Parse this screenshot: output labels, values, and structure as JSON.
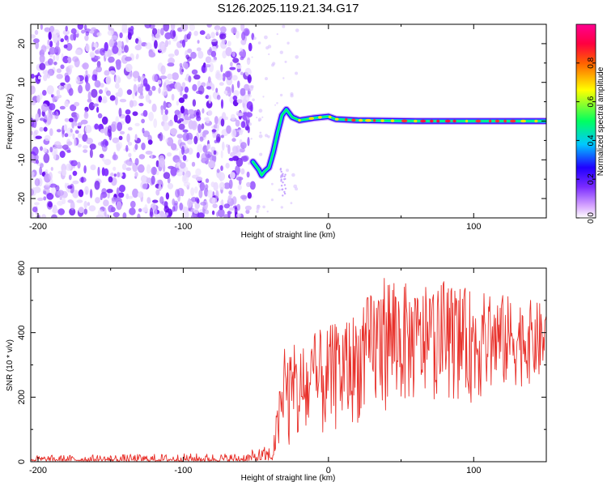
{
  "chart_data": [
    {
      "type": "heatmap",
      "title": "S126.2025.119.21.34.G17",
      "xlabel": "Height of straight line (km)",
      "ylabel": "Frequency (Hz)",
      "xlim": [
        -205,
        150
      ],
      "ylim": [
        -25,
        25
      ],
      "x_ticks": [
        -200,
        -100,
        0,
        100
      ],
      "y_ticks": [
        -20,
        -10,
        0,
        10,
        20
      ],
      "colorbar": {
        "label": "Normalized spectral amplitude",
        "range": [
          0,
          1
        ],
        "ticks": [
          0.0,
          0.2,
          0.4,
          0.6,
          0.8
        ],
        "colors": [
          "#ffffff",
          "#c060ff",
          "#3b00ff",
          "#00c8ff",
          "#00ff80",
          "#ffff00",
          "#ff6000",
          "#ff0050",
          "#ff00a0"
        ]
      },
      "noise_region_x": [
        -205,
        -54
      ],
      "ridge": [
        {
          "x": -52,
          "f": -10.5
        },
        {
          "x": -48,
          "f": -12.5
        },
        {
          "x": -46,
          "f": -14.0
        },
        {
          "x": -44,
          "f": -13.0
        },
        {
          "x": -41,
          "f": -12.0
        },
        {
          "x": -38,
          "f": -8.0
        },
        {
          "x": -35,
          "f": -3.0
        },
        {
          "x": -32,
          "f": 1.5
        },
        {
          "x": -29,
          "f": 3.0
        },
        {
          "x": -25,
          "f": 1.0
        },
        {
          "x": -20,
          "f": 0.2
        },
        {
          "x": -10,
          "f": 0.8
        },
        {
          "x": 0,
          "f": 1.2
        },
        {
          "x": 5,
          "f": 0.5
        },
        {
          "x": 20,
          "f": 0.2
        },
        {
          "x": 60,
          "f": 0.0
        },
        {
          "x": 100,
          "f": 0.0
        },
        {
          "x": 150,
          "f": 0.0
        }
      ]
    },
    {
      "type": "line",
      "xlabel": "Height of straight line (km)",
      "ylabel": "SNR (10 * v/v)",
      "xlim": [
        -205,
        150
      ],
      "ylim": [
        0,
        600
      ],
      "x_ticks": [
        -200,
        -100,
        0,
        100
      ],
      "y_ticks": [
        0,
        200,
        400,
        600
      ],
      "line_color": "#e8302a",
      "envelope": [
        {
          "x": -205,
          "low": 2,
          "high": 22
        },
        {
          "x": -60,
          "low": 2,
          "high": 30
        },
        {
          "x": -38,
          "low": 5,
          "high": 60
        },
        {
          "x": -35,
          "low": 15,
          "high": 190
        },
        {
          "x": -30,
          "low": 20,
          "high": 370
        },
        {
          "x": -20,
          "low": 40,
          "high": 360
        },
        {
          "x": -10,
          "low": 50,
          "high": 400
        },
        {
          "x": 0,
          "low": 80,
          "high": 420
        },
        {
          "x": 20,
          "low": 120,
          "high": 470
        },
        {
          "x": 40,
          "low": 160,
          "high": 600
        },
        {
          "x": 60,
          "low": 180,
          "high": 530
        },
        {
          "x": 80,
          "low": 200,
          "high": 560
        },
        {
          "x": 100,
          "low": 180,
          "high": 530
        },
        {
          "x": 120,
          "low": 220,
          "high": 520
        },
        {
          "x": 150,
          "low": 250,
          "high": 490
        }
      ]
    }
  ]
}
